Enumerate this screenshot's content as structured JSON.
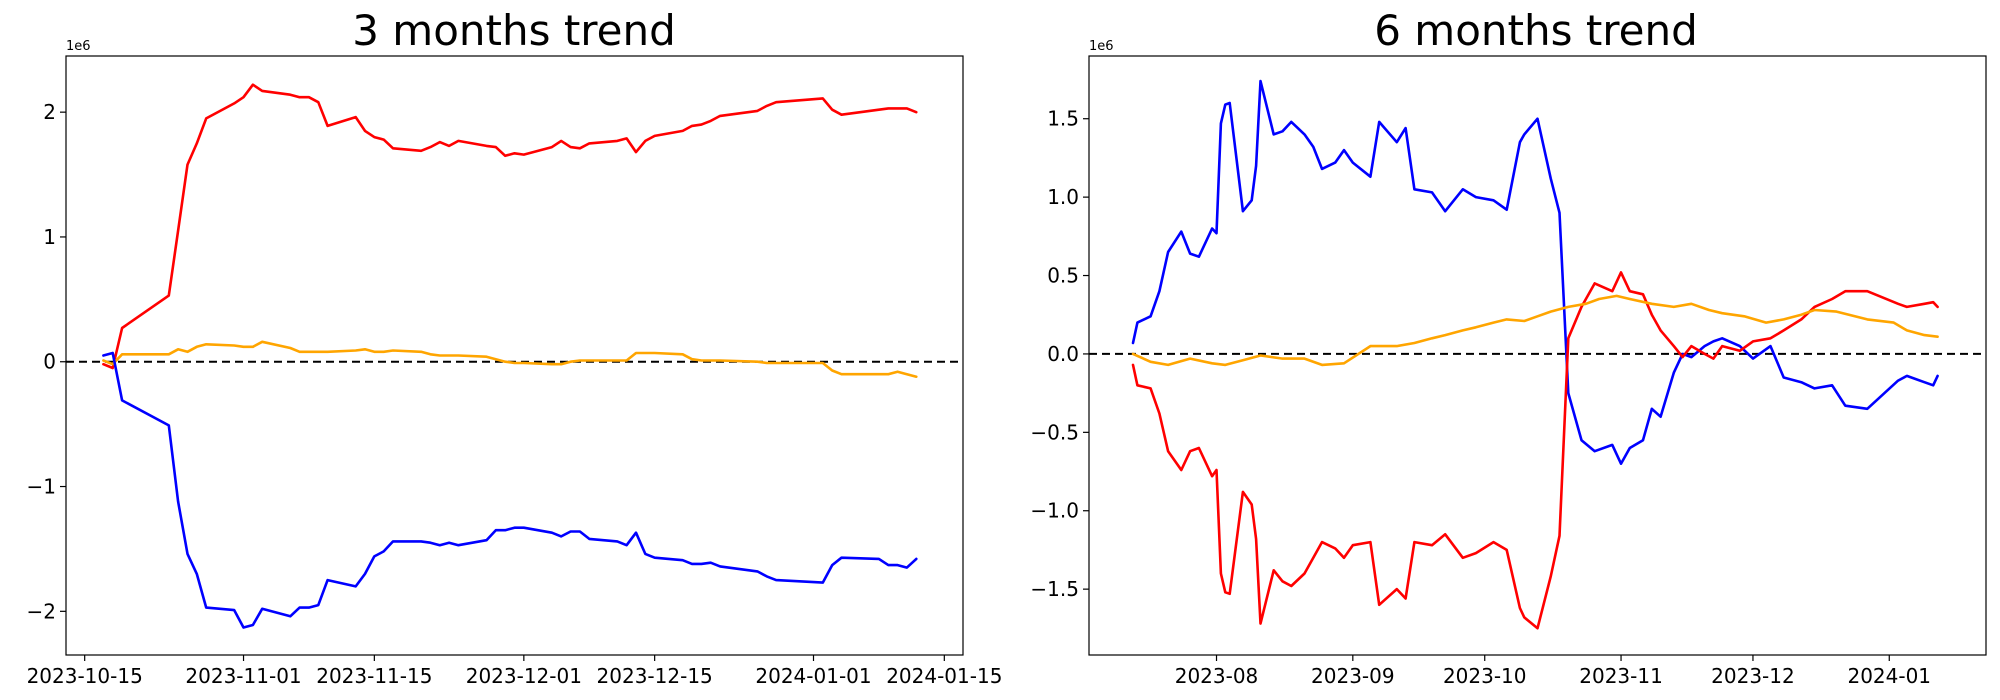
{
  "chart_data": [
    {
      "type": "line",
      "title": "3 months trend",
      "xlabel": "",
      "ylabel": "",
      "offset_text": "1e6",
      "x_type": "date",
      "xlim": [
        "2023-10-13",
        "2024-01-17"
      ],
      "ylim": [
        -2.35,
        2.45
      ],
      "y_scale": 1000000,
      "x_ticks": [
        "2023-10-15",
        "2023-11-01",
        "2023-11-15",
        "2023-12-01",
        "2023-12-15",
        "2024-01-01",
        "2024-01-15"
      ],
      "x_tick_labels": [
        "2023-10-15",
        "2023-11-01",
        "2023-11-15",
        "2023-12-01",
        "2023-12-15",
        "2024-01-01",
        "2024-01-15"
      ],
      "y_ticks": [
        -2,
        -1,
        0,
        1,
        2
      ],
      "y_tick_labels": [
        "−2",
        "−1",
        "0",
        "1",
        "2"
      ],
      "grid": false,
      "zero_line": true,
      "series": [
        {
          "color": "#ff0000",
          "x": [
            "2023-10-17",
            "2023-10-18",
            "2023-10-19",
            "2023-10-24",
            "2023-10-25",
            "2023-10-26",
            "2023-10-27",
            "2023-10-28",
            "2023-10-31",
            "2023-11-01",
            "2023-11-02",
            "2023-11-03",
            "2023-11-06",
            "2023-11-07",
            "2023-11-08",
            "2023-11-09",
            "2023-11-10",
            "2023-11-13",
            "2023-11-14",
            "2023-11-15",
            "2023-11-16",
            "2023-11-17",
            "2023-11-20",
            "2023-11-21",
            "2023-11-22",
            "2023-11-23",
            "2023-11-24",
            "2023-11-27",
            "2023-11-28",
            "2023-11-29",
            "2023-11-30",
            "2023-12-01",
            "2023-12-04",
            "2023-12-05",
            "2023-12-06",
            "2023-12-07",
            "2023-12-08",
            "2023-12-11",
            "2023-12-12",
            "2023-12-13",
            "2023-12-14",
            "2023-12-15",
            "2023-12-18",
            "2023-12-19",
            "2023-12-20",
            "2023-12-21",
            "2023-12-22",
            "2023-12-26",
            "2023-12-27",
            "2023-12-28",
            "2024-01-02",
            "2024-01-03",
            "2024-01-04",
            "2024-01-08",
            "2024-01-09",
            "2024-01-10",
            "2024-01-11",
            "2024-01-12"
          ],
          "values": [
            -0.02,
            -0.05,
            0.27,
            0.53,
            1.05,
            1.58,
            1.75,
            1.95,
            2.07,
            2.12,
            2.22,
            2.17,
            2.14,
            2.12,
            2.12,
            2.08,
            1.89,
            1.96,
            1.85,
            1.8,
            1.78,
            1.71,
            1.69,
            1.72,
            1.76,
            1.73,
            1.77,
            1.73,
            1.72,
            1.65,
            1.67,
            1.66,
            1.72,
            1.77,
            1.72,
            1.71,
            1.75,
            1.77,
            1.79,
            1.68,
            1.77,
            1.81,
            1.85,
            1.89,
            1.9,
            1.93,
            1.97,
            2.01,
            2.05,
            2.08,
            2.11,
            2.02,
            1.98,
            2.02,
            2.03,
            2.03,
            2.03,
            2.0
          ]
        },
        {
          "color": "#ffa500",
          "x": [
            "2023-10-17",
            "2023-10-18",
            "2023-10-19",
            "2023-10-24",
            "2023-10-25",
            "2023-10-26",
            "2023-10-27",
            "2023-10-28",
            "2023-10-31",
            "2023-11-01",
            "2023-11-02",
            "2023-11-03",
            "2023-11-06",
            "2023-11-07",
            "2023-11-08",
            "2023-11-09",
            "2023-11-10",
            "2023-11-13",
            "2023-11-14",
            "2023-11-15",
            "2023-11-16",
            "2023-11-17",
            "2023-11-20",
            "2023-11-21",
            "2023-11-22",
            "2023-11-23",
            "2023-11-24",
            "2023-11-27",
            "2023-11-28",
            "2023-11-29",
            "2023-11-30",
            "2023-12-01",
            "2023-12-04",
            "2023-12-05",
            "2023-12-06",
            "2023-12-07",
            "2023-12-08",
            "2023-12-11",
            "2023-12-12",
            "2023-12-13",
            "2023-12-14",
            "2023-12-15",
            "2023-12-18",
            "2023-12-19",
            "2023-12-20",
            "2023-12-21",
            "2023-12-22",
            "2023-12-26",
            "2023-12-27",
            "2023-12-28",
            "2024-01-02",
            "2024-01-03",
            "2024-01-04",
            "2024-01-08",
            "2024-01-09",
            "2024-01-10",
            "2024-01-11",
            "2024-01-12"
          ],
          "values": [
            0.01,
            -0.02,
            0.06,
            0.06,
            0.1,
            0.08,
            0.12,
            0.14,
            0.13,
            0.12,
            0.12,
            0.16,
            0.11,
            0.08,
            0.08,
            0.08,
            0.08,
            0.09,
            0.1,
            0.08,
            0.08,
            0.09,
            0.08,
            0.06,
            0.05,
            0.05,
            0.05,
            0.04,
            0.02,
            0.0,
            -0.01,
            -0.01,
            -0.02,
            -0.02,
            0.0,
            0.01,
            0.01,
            0.01,
            0.01,
            0.07,
            0.07,
            0.07,
            0.06,
            0.02,
            0.01,
            0.01,
            0.01,
            0.0,
            -0.01,
            -0.01,
            -0.01,
            -0.07,
            -0.1,
            -0.1,
            -0.1,
            -0.08,
            -0.1,
            -0.12
          ]
        },
        {
          "color": "#0000ff",
          "x": [
            "2023-10-17",
            "2023-10-18",
            "2023-10-19",
            "2023-10-24",
            "2023-10-25",
            "2023-10-26",
            "2023-10-27",
            "2023-10-28",
            "2023-10-31",
            "2023-11-01",
            "2023-11-02",
            "2023-11-03",
            "2023-11-06",
            "2023-11-07",
            "2023-11-08",
            "2023-11-09",
            "2023-11-10",
            "2023-11-13",
            "2023-11-14",
            "2023-11-15",
            "2023-11-16",
            "2023-11-17",
            "2023-11-20",
            "2023-11-21",
            "2023-11-22",
            "2023-11-23",
            "2023-11-24",
            "2023-11-27",
            "2023-11-28",
            "2023-11-29",
            "2023-11-30",
            "2023-12-01",
            "2023-12-04",
            "2023-12-05",
            "2023-12-06",
            "2023-12-07",
            "2023-12-08",
            "2023-12-11",
            "2023-12-12",
            "2023-12-13",
            "2023-12-14",
            "2023-12-15",
            "2023-12-18",
            "2023-12-19",
            "2023-12-20",
            "2023-12-21",
            "2023-12-22",
            "2023-12-26",
            "2023-12-27",
            "2023-12-28",
            "2024-01-02",
            "2024-01-03",
            "2024-01-04",
            "2024-01-08",
            "2024-01-09",
            "2024-01-10",
            "2024-01-11",
            "2024-01-12"
          ],
          "values": [
            0.05,
            0.07,
            -0.31,
            -0.51,
            -1.12,
            -1.54,
            -1.7,
            -1.97,
            -1.99,
            -2.13,
            -2.11,
            -1.98,
            -2.04,
            -1.97,
            -1.97,
            -1.95,
            -1.75,
            -1.8,
            -1.7,
            -1.56,
            -1.52,
            -1.44,
            -1.44,
            -1.45,
            -1.47,
            -1.45,
            -1.47,
            -1.43,
            -1.35,
            -1.35,
            -1.33,
            -1.33,
            -1.37,
            -1.4,
            -1.36,
            -1.36,
            -1.42,
            -1.44,
            -1.47,
            -1.37,
            -1.54,
            -1.57,
            -1.59,
            -1.62,
            -1.62,
            -1.61,
            -1.64,
            -1.68,
            -1.72,
            -1.75,
            -1.77,
            -1.63,
            -1.57,
            -1.58,
            -1.63,
            -1.63,
            -1.65,
            -1.58
          ]
        }
      ]
    },
    {
      "type": "line",
      "title": "6 months trend",
      "xlabel": "",
      "ylabel": "",
      "offset_text": "1e6",
      "x_type": "date",
      "xlim": [
        "2023-07-03",
        "2024-01-23"
      ],
      "ylim": [
        -1.92,
        1.9
      ],
      "y_scale": 1000000,
      "x_ticks": [
        "2023-08-01",
        "2023-09-01",
        "2023-10-01",
        "2023-11-01",
        "2023-12-01",
        "2024-01-01"
      ],
      "x_tick_labels": [
        "2023-08",
        "2023-09",
        "2023-10",
        "2023-11",
        "2023-12",
        "2024-01"
      ],
      "y_ticks": [
        -1.5,
        -1.0,
        -0.5,
        0.0,
        0.5,
        1.0,
        1.5
      ],
      "y_tick_labels": [
        "−1.5",
        "−1.0",
        "−0.5",
        "0.0",
        "0.5",
        "1.0",
        "1.5"
      ],
      "grid": false,
      "zero_line": true,
      "series": [
        {
          "color": "#0000ff",
          "x": [
            "2023-07-13",
            "2023-07-14",
            "2023-07-17",
            "2023-07-19",
            "2023-07-21",
            "2023-07-24",
            "2023-07-26",
            "2023-07-28",
            "2023-07-31",
            "2023-08-01",
            "2023-08-02",
            "2023-08-03",
            "2023-08-04",
            "2023-08-07",
            "2023-08-09",
            "2023-08-10",
            "2023-08-11",
            "2023-08-14",
            "2023-08-16",
            "2023-08-18",
            "2023-08-21",
            "2023-08-23",
            "2023-08-25",
            "2023-08-28",
            "2023-08-30",
            "2023-09-01",
            "2023-09-05",
            "2023-09-07",
            "2023-09-11",
            "2023-09-13",
            "2023-09-15",
            "2023-09-19",
            "2023-09-22",
            "2023-09-26",
            "2023-09-29",
            "2023-10-03",
            "2023-10-06",
            "2023-10-09",
            "2023-10-10",
            "2023-10-13",
            "2023-10-16",
            "2023-10-18",
            "2023-10-20",
            "2023-10-23",
            "2023-10-26",
            "2023-10-30",
            "2023-11-01",
            "2023-11-03",
            "2023-11-06",
            "2023-11-08",
            "2023-11-10",
            "2023-11-13",
            "2023-11-15",
            "2023-11-17",
            "2023-11-20",
            "2023-11-22",
            "2023-11-24",
            "2023-11-28",
            "2023-12-01",
            "2023-12-05",
            "2023-12-08",
            "2023-12-12",
            "2023-12-15",
            "2023-12-19",
            "2023-12-22",
            "2023-12-27",
            "2024-01-03",
            "2024-01-05",
            "2024-01-09",
            "2024-01-11",
            "2024-01-12"
          ],
          "values": [
            0.07,
            0.2,
            0.24,
            0.4,
            0.65,
            0.78,
            0.64,
            0.62,
            0.8,
            0.77,
            1.47,
            1.59,
            1.6,
            0.91,
            0.98,
            1.2,
            1.74,
            1.4,
            1.42,
            1.48,
            1.4,
            1.32,
            1.18,
            1.22,
            1.3,
            1.22,
            1.13,
            1.48,
            1.35,
            1.44,
            1.05,
            1.03,
            0.91,
            1.05,
            1.0,
            0.98,
            0.92,
            1.35,
            1.4,
            1.5,
            1.12,
            0.9,
            -0.25,
            -0.55,
            -0.62,
            -0.58,
            -0.7,
            -0.6,
            -0.55,
            -0.35,
            -0.4,
            -0.12,
            0.0,
            -0.02,
            0.05,
            0.08,
            0.1,
            0.05,
            -0.03,
            0.05,
            -0.15,
            -0.18,
            -0.22,
            -0.2,
            -0.33,
            -0.35,
            -0.17,
            -0.14,
            -0.18,
            -0.2,
            -0.14
          ]
        },
        {
          "color": "#ff0000",
          "x": [
            "2023-07-13",
            "2023-07-14",
            "2023-07-17",
            "2023-07-19",
            "2023-07-21",
            "2023-07-24",
            "2023-07-26",
            "2023-07-28",
            "2023-07-31",
            "2023-08-01",
            "2023-08-02",
            "2023-08-03",
            "2023-08-04",
            "2023-08-07",
            "2023-08-09",
            "2023-08-10",
            "2023-08-11",
            "2023-08-14",
            "2023-08-16",
            "2023-08-18",
            "2023-08-21",
            "2023-08-23",
            "2023-08-25",
            "2023-08-28",
            "2023-08-30",
            "2023-09-01",
            "2023-09-05",
            "2023-09-07",
            "2023-09-11",
            "2023-09-13",
            "2023-09-15",
            "2023-09-19",
            "2023-09-22",
            "2023-09-26",
            "2023-09-29",
            "2023-10-03",
            "2023-10-06",
            "2023-10-09",
            "2023-10-10",
            "2023-10-13",
            "2023-10-16",
            "2023-10-18",
            "2023-10-20",
            "2023-10-23",
            "2023-10-26",
            "2023-10-30",
            "2023-11-01",
            "2023-11-03",
            "2023-11-06",
            "2023-11-08",
            "2023-11-10",
            "2023-11-13",
            "2023-11-15",
            "2023-11-17",
            "2023-11-20",
            "2023-11-22",
            "2023-11-24",
            "2023-11-28",
            "2023-12-01",
            "2023-12-05",
            "2023-12-08",
            "2023-12-12",
            "2023-12-15",
            "2023-12-19",
            "2023-12-22",
            "2023-12-27",
            "2024-01-03",
            "2024-01-05",
            "2024-01-09",
            "2024-01-11",
            "2024-01-12"
          ],
          "values": [
            -0.07,
            -0.2,
            -0.22,
            -0.38,
            -0.62,
            -0.74,
            -0.62,
            -0.6,
            -0.78,
            -0.74,
            -1.4,
            -1.52,
            -1.53,
            -0.88,
            -0.96,
            -1.18,
            -1.72,
            -1.38,
            -1.45,
            -1.48,
            -1.4,
            -1.3,
            -1.2,
            -1.24,
            -1.3,
            -1.22,
            -1.2,
            -1.6,
            -1.5,
            -1.56,
            -1.2,
            -1.22,
            -1.15,
            -1.3,
            -1.27,
            -1.2,
            -1.25,
            -1.62,
            -1.68,
            -1.75,
            -1.42,
            -1.16,
            0.1,
            0.3,
            0.45,
            0.4,
            0.52,
            0.4,
            0.38,
            0.25,
            0.15,
            0.05,
            -0.02,
            0.05,
            0.0,
            -0.03,
            0.05,
            0.02,
            0.08,
            0.1,
            0.15,
            0.22,
            0.3,
            0.35,
            0.4,
            0.4,
            0.32,
            0.3,
            0.32,
            0.33,
            0.3
          ]
        },
        {
          "color": "#ffa500",
          "x": [
            "2023-07-13",
            "2023-07-17",
            "2023-07-21",
            "2023-07-26",
            "2023-07-31",
            "2023-08-03",
            "2023-08-07",
            "2023-08-11",
            "2023-08-16",
            "2023-08-21",
            "2023-08-25",
            "2023-08-30",
            "2023-09-05",
            "2023-09-11",
            "2023-09-15",
            "2023-09-19",
            "2023-09-22",
            "2023-09-26",
            "2023-09-29",
            "2023-10-03",
            "2023-10-06",
            "2023-10-10",
            "2023-10-13",
            "2023-10-16",
            "2023-10-20",
            "2023-10-24",
            "2023-10-27",
            "2023-10-31",
            "2023-11-03",
            "2023-11-08",
            "2023-11-13",
            "2023-11-17",
            "2023-11-21",
            "2023-11-24",
            "2023-11-29",
            "2023-12-04",
            "2023-12-08",
            "2023-12-12",
            "2023-12-15",
            "2023-12-20",
            "2023-12-27",
            "2024-01-02",
            "2024-01-05",
            "2024-01-09",
            "2024-01-12"
          ],
          "values": [
            0.0,
            -0.05,
            -0.07,
            -0.03,
            -0.06,
            -0.07,
            -0.04,
            -0.01,
            -0.03,
            -0.03,
            -0.07,
            -0.06,
            0.05,
            0.05,
            0.07,
            0.1,
            0.12,
            0.15,
            0.17,
            0.2,
            0.22,
            0.21,
            0.24,
            0.27,
            0.3,
            0.32,
            0.35,
            0.37,
            0.35,
            0.32,
            0.3,
            0.32,
            0.28,
            0.26,
            0.24,
            0.2,
            0.22,
            0.25,
            0.28,
            0.27,
            0.22,
            0.2,
            0.15,
            0.12,
            0.11
          ]
        }
      ]
    }
  ]
}
